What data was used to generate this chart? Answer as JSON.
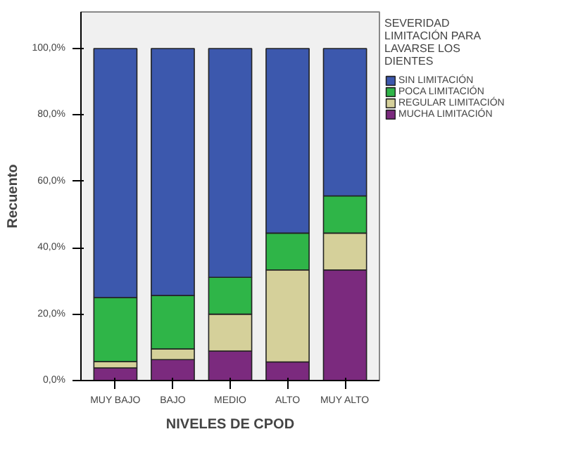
{
  "chart_data": {
    "type": "bar",
    "stacked": true,
    "xlabel": "NIVELES DE CPOD",
    "ylabel": "Recuento",
    "legend_title": "SEVERIDAD\nLIMITACIÓN PARA\nLAVARSE LOS\nDIENTES",
    "categories": [
      "MUY BAJO",
      "BAJO",
      "MEDIO",
      "ALTO",
      "MUY ALTO"
    ],
    "series": [
      {
        "name": "MUCHA LIMITACIÓN",
        "color": "#7b2a7e",
        "values": [
          3.8,
          6.3,
          8.9,
          5.6,
          33.3
        ]
      },
      {
        "name": "REGULAR LIMITACIÓN",
        "color": "#d5d09a",
        "values": [
          1.9,
          3.2,
          11.1,
          27.7,
          11.1
        ]
      },
      {
        "name": "POCA LIMITACIÓN",
        "color": "#2fb548",
        "values": [
          19.3,
          16.1,
          11.1,
          11.1,
          11.2
        ]
      },
      {
        "name": "SIN LIMITACIÓN",
        "color": "#3c58ad",
        "values": [
          75.0,
          74.4,
          68.9,
          55.6,
          44.4
        ]
      }
    ],
    "ylim": [
      0,
      111
    ],
    "yticks": [
      {
        "value": 0,
        "label": "0,0%"
      },
      {
        "value": 20,
        "label": "20,0%"
      },
      {
        "value": 40,
        "label": "40,0%"
      },
      {
        "value": 60,
        "label": "60,0%"
      },
      {
        "value": 80,
        "label": "80,0%"
      },
      {
        "value": 100,
        "label": "100,0%"
      }
    ],
    "grid": false,
    "legend": "right"
  }
}
